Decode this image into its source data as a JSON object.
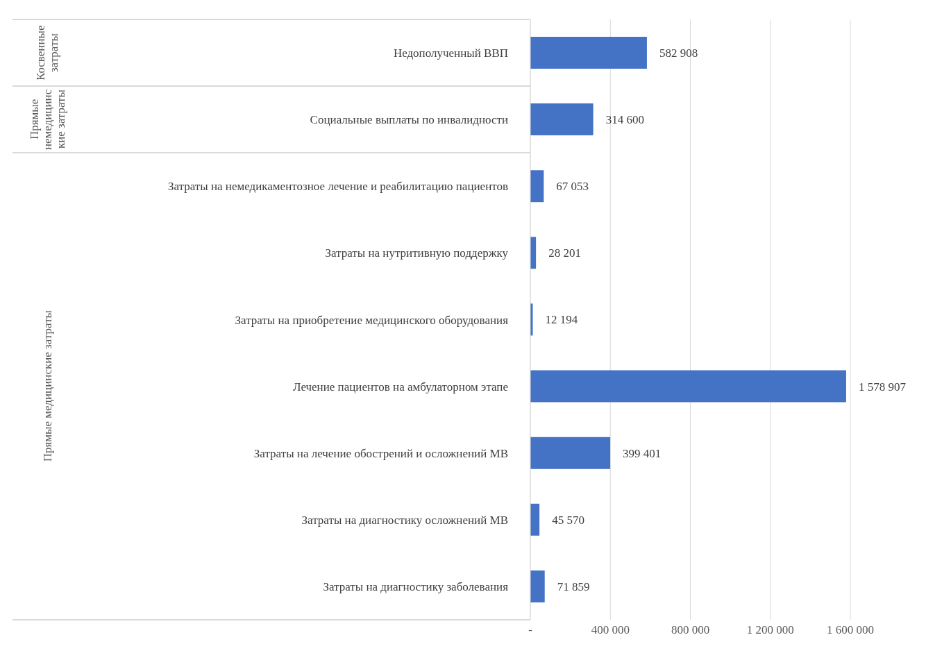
{
  "chart_data": {
    "type": "bar",
    "orientation": "horizontal",
    "categories": [
      "Недополученный ВВП",
      "Социальные выплаты по инвалидности",
      "Затраты на немедикаментозное лечение и реабилитацию пациентов",
      "Затраты на нутритивную поддержку",
      "Затраты на приобретение медицинского оборудования",
      "Лечение пациентов на амбулаторном этапе",
      "Затраты на лечение обострений и осложнений МВ",
      "Затраты на диагностику осложнений МВ",
      "Затраты на диагностику заболевания"
    ],
    "values": [
      582908,
      314600,
      67053,
      28201,
      12194,
      1578907,
      399401,
      45570,
      71859
    ],
    "value_labels": [
      "582 908",
      "314 600",
      "67 053",
      "28 201",
      "12 194",
      "1 578 907",
      "399 401",
      "45 570",
      "71 859"
    ],
    "color": "#4472c4",
    "xlim": [
      0,
      1600000
    ],
    "xticks": [
      {
        "value": 0,
        "label": "-"
      },
      {
        "value": 400000,
        "label": "400 000"
      },
      {
        "value": 800000,
        "label": "800 000"
      },
      {
        "value": 1200000,
        "label": "1 200 000"
      },
      {
        "value": 1600000,
        "label": "1 600 000"
      }
    ],
    "grid": "x",
    "annotations": [
      "Косвенные затраты",
      "Прямые немедицинские затраты",
      "Прямые медицинские затраты"
    ]
  }
}
